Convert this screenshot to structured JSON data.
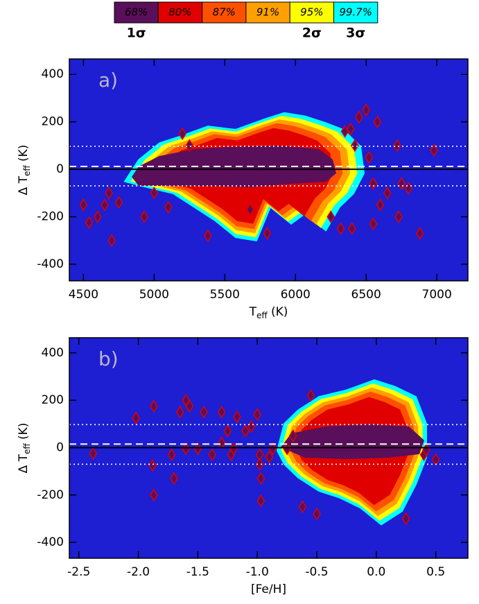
{
  "colorbar": {
    "levels": [
      {
        "label": "68%",
        "color": "#5a0f5a",
        "sigma": "1σ"
      },
      {
        "label": "80%",
        "color": "#e00000"
      },
      {
        "label": "87%",
        "color": "#ff5000"
      },
      {
        "label": "91%",
        "color": "#ffa000"
      },
      {
        "label": "95%",
        "color": "#ffff00",
        "sigma": "2σ"
      },
      {
        "label": "99.7%",
        "color": "#00ffff",
        "sigma": "3σ"
      }
    ]
  },
  "chart_data": [
    {
      "type": "scatter",
      "panel_label": "a)",
      "xlabel": {
        "main": "T",
        "sub": "eff",
        "unit": " (K)"
      },
      "ylabel": {
        "main": "Δ T",
        "sub": "eff",
        "unit": " (K)"
      },
      "xlim": [
        4400,
        7220
      ],
      "ylim": [
        -470,
        465
      ],
      "xticks": [
        4500,
        5000,
        5500,
        6000,
        6500,
        7000
      ],
      "yticks": [
        -400,
        -200,
        0,
        200,
        400
      ],
      "background": "#1e1ed2",
      "marker_fill": "#5a0f5a",
      "marker_edge": "#e00000",
      "hlines": [
        {
          "value": 0,
          "style": "solid"
        },
        {
          "value": 12,
          "style": "dashed"
        },
        {
          "value": 97,
          "style": "dotted"
        },
        {
          "value": -70,
          "style": "dotted"
        }
      ],
      "x": [
        4500,
        4540,
        4600,
        4650,
        4700,
        4750,
        4680,
        4930,
        5100,
        5000,
        5200,
        5250,
        5380,
        5680,
        5800,
        6320,
        6400,
        6500,
        6550,
        6580,
        6520,
        6600,
        6650,
        6720,
        6750,
        6730,
        6800,
        6880,
        6980,
        6450,
        6390,
        6420,
        6550,
        6250,
        6350
      ],
      "values": [
        -150,
        -225,
        -200,
        -150,
        -300,
        -140,
        -100,
        -200,
        -160,
        -100,
        150,
        100,
        -280,
        -170,
        -270,
        -250,
        -250,
        250,
        -230,
        200,
        50,
        -150,
        -100,
        100,
        -60,
        -200,
        -80,
        -270,
        80,
        220,
        170,
        100,
        -60,
        -200,
        160
      ]
    },
    {
      "type": "scatter",
      "panel_label": "b)",
      "xlabel": {
        "main": "[Fe/H]"
      },
      "ylabel": {
        "main": "Δ T",
        "sub": "eff",
        "unit": " (K)"
      },
      "xlim": [
        -2.58,
        0.77
      ],
      "ylim": [
        -467,
        464
      ],
      "xticks": [
        -2.5,
        {
          "value": -2,
          "label": "-2.0"
        },
        -1.5,
        {
          "value": -1,
          "label": "-1.0"
        },
        -0.5,
        {
          "value": 0,
          "label": "0.0"
        },
        0.5
      ],
      "yticks": [
        -400,
        -200,
        0,
        200,
        400
      ],
      "background": "#1e1ed2",
      "marker_fill": "#5a0f5a",
      "marker_edge": "#e00000",
      "hlines": [
        {
          "value": 0,
          "style": "solid"
        },
        {
          "value": 15,
          "style": "dashed"
        },
        {
          "value": 97,
          "style": "dotted"
        },
        {
          "value": -70,
          "style": "dotted"
        }
      ],
      "x": [
        -2.38,
        -2.02,
        -1.88,
        -1.87,
        -1.87,
        -1.72,
        -1.7,
        -1.65,
        -1.6,
        -1.57,
        -1.6,
        -1.5,
        -1.45,
        -1.38,
        -1.3,
        -1.3,
        -1.25,
        -1.22,
        -1.2,
        -1.17,
        -1.1,
        -1.05,
        -1.0,
        -0.98,
        -0.98,
        -0.97,
        -0.97,
        -0.9,
        -0.87,
        -0.75,
        -0.7,
        -0.62,
        -0.55,
        -0.5,
        0.4,
        0.5,
        0.25,
        0.42
      ],
      "values": [
        -25,
        125,
        -75,
        -200,
        175,
        -30,
        -130,
        150,
        200,
        175,
        -5,
        -5,
        150,
        -30,
        150,
        20,
        70,
        -30,
        -5,
        130,
        70,
        90,
        140,
        -30,
        -70,
        -130,
        -225,
        -40,
        -5,
        -5,
        50,
        -250,
        220,
        -280,
        -30,
        -50,
        -300,
        -10
      ]
    }
  ]
}
